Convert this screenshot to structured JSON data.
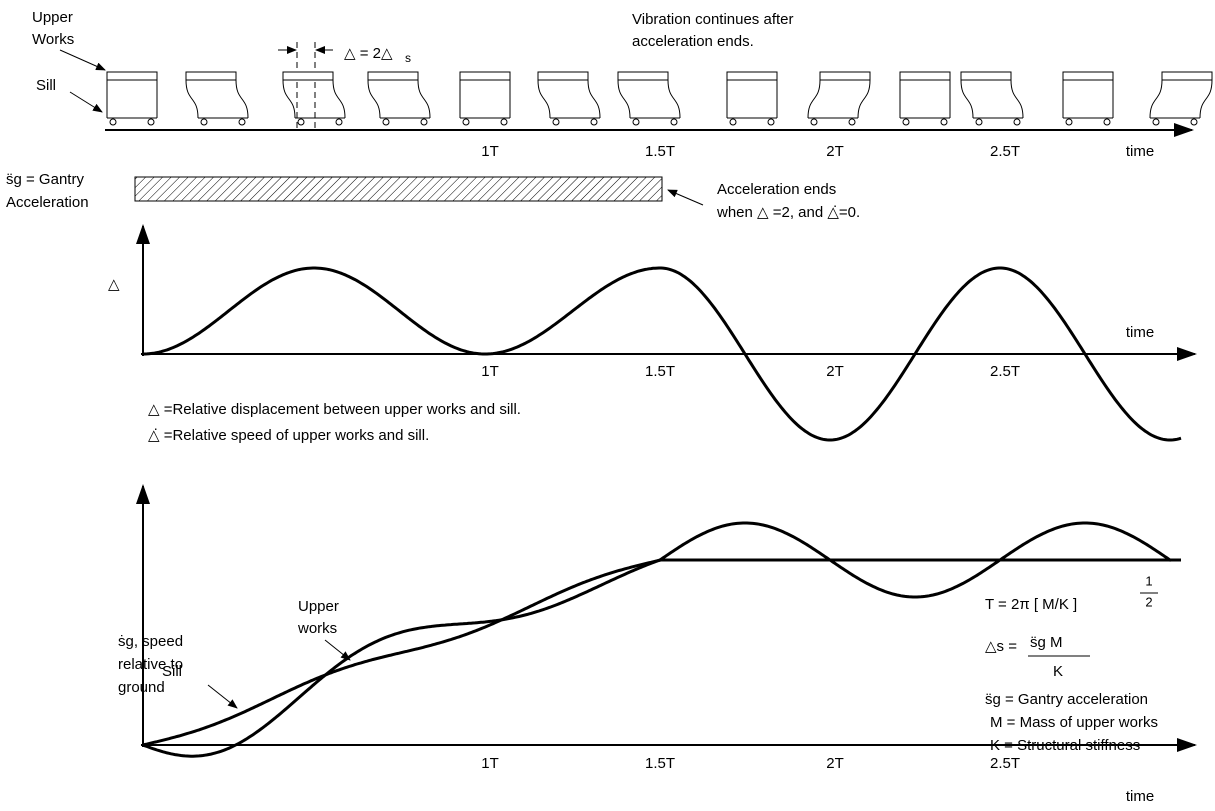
{
  "top": {
    "upper_works": [
      "Upper",
      "Works"
    ],
    "sill": "Sill",
    "delta_eq": "△ = 2△",
    "delta_sub": "s",
    "note": [
      "Vibration continues after",
      "acceleration ends."
    ],
    "ticks": [
      "1T",
      "1.5T",
      "2T",
      "2.5T"
    ],
    "axis_label": "time"
  },
  "acceleration": {
    "label": [
      "s̈g = Gantry",
      "Acceleration"
    ],
    "end_note": [
      "Acceleration ends",
      "when △ =2, and △̇=0."
    ]
  },
  "displacement_chart": {
    "y_label": "△",
    "x_label": "time",
    "ticks": [
      "1T",
      "1.5T",
      "2T",
      "2.5T"
    ],
    "legend": [
      "△ =Relative displacement between upper works and sill.",
      "△̇ =Relative speed of upper works and sill."
    ]
  },
  "speed_chart": {
    "y_label": [
      "ṡg, speed",
      "relative to",
      "ground"
    ],
    "upper_works": [
      "Upper",
      "works"
    ],
    "sill": "Sill",
    "ticks": [
      "1T",
      "1.5T",
      "2T",
      "2.5T"
    ],
    "x_label": "time"
  },
  "formulas": {
    "period": "T = 2π  [ M/K ]",
    "exponent": [
      "1",
      "2"
    ],
    "delta_s": "△s =",
    "delta_num": "s̈g M",
    "delta_den": "K",
    "defs": [
      "s̈g = Gantry acceleration",
      "M = Mass of upper works",
      "K = Structural stiffness"
    ]
  }
}
